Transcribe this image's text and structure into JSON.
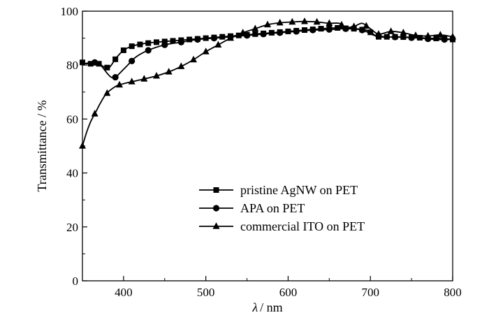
{
  "chart_data": {
    "type": "line",
    "xlabel_symbol": "λ",
    "xlabel_unit": "/ nm",
    "ylabel": "Transmittance / %",
    "xlim": [
      350,
      800
    ],
    "ylim": [
      0,
      100
    ],
    "xticks": [
      400,
      500,
      600,
      700,
      800
    ],
    "yticks": [
      0,
      20,
      40,
      60,
      80,
      100
    ],
    "grid": false,
    "legend_position": "lower-center",
    "line_color": "#000000",
    "series": [
      {
        "name": "pristine AgNW on PET",
        "marker": "square",
        "points": [
          [
            350,
            81
          ],
          [
            355,
            80.5
          ],
          [
            362,
            80.5
          ],
          [
            370,
            80.5
          ],
          [
            378,
            79
          ],
          [
            383,
            79.2
          ],
          [
            392,
            83
          ],
          [
            400,
            85.5
          ],
          [
            410,
            87
          ],
          [
            425,
            88
          ],
          [
            440,
            88.5
          ],
          [
            460,
            89
          ],
          [
            480,
            89.5
          ],
          [
            500,
            90
          ],
          [
            520,
            90.5
          ],
          [
            540,
            91
          ],
          [
            560,
            91.5
          ],
          [
            580,
            92
          ],
          [
            600,
            92.5
          ],
          [
            620,
            93
          ],
          [
            640,
            93.5
          ],
          [
            660,
            93.8
          ],
          [
            680,
            93.5
          ],
          [
            695,
            93
          ],
          [
            710,
            90.5
          ],
          [
            730,
            90.5
          ],
          [
            750,
            90.3
          ],
          [
            770,
            90
          ],
          [
            790,
            89.8
          ],
          [
            800,
            89.5
          ]
        ],
        "marker_x": [
          350,
          360,
          370,
          380,
          390,
          400,
          410,
          420,
          430,
          440,
          450,
          460,
          470,
          480,
          490,
          500,
          510,
          520,
          530,
          540,
          550,
          560,
          570,
          580,
          590,
          600,
          610,
          620,
          630,
          640,
          650,
          660,
          670,
          680,
          690,
          700,
          710,
          720,
          730,
          740,
          750,
          760,
          770,
          780,
          790,
          800
        ]
      },
      {
        "name": "APA on PET",
        "marker": "circle",
        "points": [
          [
            350,
            80.5
          ],
          [
            358,
            80.8
          ],
          [
            365,
            81
          ],
          [
            372,
            80
          ],
          [
            380,
            77
          ],
          [
            385,
            75.5
          ],
          [
            390,
            75.5
          ],
          [
            397,
            77.5
          ],
          [
            405,
            80
          ],
          [
            415,
            83
          ],
          [
            430,
            85.5
          ],
          [
            450,
            87.5
          ],
          [
            470,
            88.5
          ],
          [
            490,
            89.5
          ],
          [
            510,
            90
          ],
          [
            530,
            90.5
          ],
          [
            550,
            91
          ],
          [
            570,
            91.5
          ],
          [
            590,
            92
          ],
          [
            610,
            92.5
          ],
          [
            630,
            93
          ],
          [
            650,
            93.2
          ],
          [
            670,
            93.5
          ],
          [
            690,
            93
          ],
          [
            705,
            91
          ],
          [
            720,
            90.5
          ],
          [
            740,
            90.3
          ],
          [
            760,
            90
          ],
          [
            780,
            89.5
          ],
          [
            800,
            89.5
          ]
        ],
        "marker_x": [
          365,
          390,
          410,
          430,
          450,
          470,
          490,
          510,
          530,
          550,
          570,
          590,
          610,
          630,
          650,
          670,
          690,
          710,
          730,
          750,
          770,
          790
        ]
      },
      {
        "name": "commercial ITO on PET",
        "marker": "triangle",
        "points": [
          [
            350,
            50
          ],
          [
            355,
            55
          ],
          [
            360,
            59
          ],
          [
            366,
            62.5
          ],
          [
            372,
            66
          ],
          [
            378,
            69
          ],
          [
            385,
            71
          ],
          [
            393,
            72.5
          ],
          [
            405,
            73.5
          ],
          [
            420,
            74.5
          ],
          [
            440,
            76
          ],
          [
            455,
            77.5
          ],
          [
            470,
            79.5
          ],
          [
            485,
            82
          ],
          [
            500,
            85
          ],
          [
            515,
            87.5
          ],
          [
            530,
            90
          ],
          [
            545,
            92
          ],
          [
            560,
            93.5
          ],
          [
            575,
            95
          ],
          [
            590,
            95.7
          ],
          [
            605,
            96
          ],
          [
            620,
            96.2
          ],
          [
            635,
            96
          ],
          [
            650,
            95.5
          ],
          [
            662,
            95.5
          ],
          [
            670,
            94
          ],
          [
            680,
            94.3
          ],
          [
            690,
            95.5
          ],
          [
            700,
            93.5
          ],
          [
            710,
            91.5
          ],
          [
            725,
            92.5
          ],
          [
            740,
            92
          ],
          [
            755,
            91
          ],
          [
            770,
            90.8
          ],
          [
            785,
            91.2
          ],
          [
            800,
            90.5
          ]
        ],
        "marker_x": [
          350,
          365,
          380,
          395,
          410,
          425,
          440,
          455,
          470,
          485,
          500,
          515,
          530,
          545,
          560,
          575,
          590,
          605,
          620,
          635,
          650,
          665,
          680,
          695,
          710,
          725,
          740,
          755,
          770,
          785,
          800
        ]
      }
    ]
  }
}
